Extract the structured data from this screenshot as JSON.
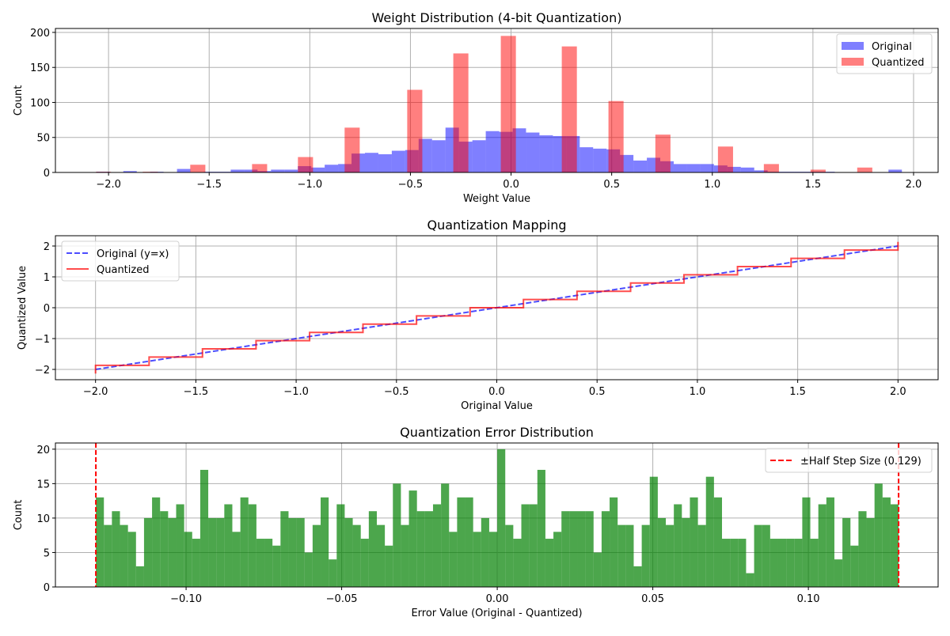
{
  "chart_data": [
    {
      "type": "bar",
      "title": "Weight Distribution (4-bit Quantization)",
      "xlabel": "Weight Value",
      "ylabel": "Count",
      "xlim": [
        -2.264,
        2.122
      ],
      "ylim": [
        0,
        205.6
      ],
      "xticks": [
        -2.0,
        -1.5,
        -1.0,
        -0.5,
        0.0,
        0.5,
        1.0,
        1.5,
        2.0
      ],
      "xtick_labels": [
        "−2.0",
        "−1.5",
        "−1.0",
        "−0.5",
        "0.0",
        "0.5",
        "1.0",
        "1.5",
        "2.0"
      ],
      "yticks": [
        0,
        50,
        100,
        150,
        200
      ],
      "ytick_labels": [
        "0",
        "50",
        "100",
        "150",
        "200"
      ],
      "grid": true,
      "legend_position": "top-right",
      "series": [
        {
          "name": "Original",
          "color": "#0000ff",
          "alpha": 0.5,
          "bin_start": -2.06,
          "bin_width": 0.0667,
          "values": [
            1,
            0,
            2,
            0,
            1,
            0,
            5,
            0,
            1,
            1,
            4,
            4,
            2,
            4,
            4,
            9,
            7,
            11,
            12,
            27,
            28,
            26,
            31,
            32,
            48,
            46,
            64,
            44,
            46,
            59,
            58,
            63,
            57,
            53,
            52,
            52,
            36,
            34,
            33,
            25,
            17,
            21,
            16,
            12,
            12,
            12,
            10,
            8,
            7,
            3,
            1,
            1,
            1,
            1,
            1,
            0,
            0,
            0,
            0,
            4
          ]
        },
        {
          "name": "Quantized",
          "color": "#ff0000",
          "alpha": 0.5,
          "bin_width": 0.075,
          "bin_lefts": [
            -2.063,
            -1.83,
            -1.594,
            -1.287,
            -1.059,
            -0.827,
            -0.516,
            -0.287,
            -0.051,
            0.252,
            0.484,
            0.717,
            1.028,
            1.256,
            1.488,
            1.72
          ],
          "values": [
            1,
            1,
            11,
            12,
            22,
            64,
            118,
            170,
            195,
            180,
            102,
            54,
            37,
            12,
            4,
            7
          ]
        }
      ]
    },
    {
      "type": "line",
      "title": "Quantization Mapping",
      "xlabel": "Original Value",
      "ylabel": "Quantized Value",
      "xlim": [
        -2.2,
        2.2
      ],
      "ylim": [
        -2.333,
        2.333
      ],
      "xticks": [
        -2.0,
        -1.5,
        -1.0,
        -0.5,
        0.0,
        0.5,
        1.0,
        1.5,
        2.0
      ],
      "xtick_labels": [
        "−2.0",
        "−1.5",
        "−1.0",
        "−0.5",
        "0.0",
        "0.5",
        "1.0",
        "1.5",
        "2.0"
      ],
      "yticks": [
        -2,
        -1,
        0,
        1,
        2
      ],
      "ytick_labels": [
        "−2",
        "−1",
        "0",
        "1",
        "2"
      ],
      "grid": true,
      "legend_position": "top-left",
      "series": [
        {
          "name": "Original (y=x)",
          "color": "#0000ff",
          "alpha": 0.7,
          "style": "dashed",
          "x": [
            -2,
            2
          ],
          "y": [
            -2,
            2
          ]
        },
        {
          "name": "Quantized",
          "color": "#ff0000",
          "alpha": 0.7,
          "style": "solid",
          "x": [
            -2,
            -2,
            -1.733,
            -1.733,
            -1.467,
            -1.467,
            -1.2,
            -1.2,
            -0.933,
            -0.933,
            -0.667,
            -0.667,
            -0.4,
            -0.4,
            -0.133,
            -0.133,
            0.133,
            0.133,
            0.4,
            0.4,
            0.667,
            0.667,
            0.933,
            0.933,
            1.2,
            1.2,
            1.467,
            1.467,
            1.733,
            1.733,
            2,
            2
          ],
          "y": [
            -2.133,
            -1.867,
            -1.867,
            -1.6,
            -1.6,
            -1.333,
            -1.333,
            -1.067,
            -1.067,
            -0.8,
            -0.8,
            -0.533,
            -0.533,
            -0.267,
            -0.267,
            0,
            0,
            0.267,
            0.267,
            0.533,
            0.533,
            0.8,
            0.8,
            1.067,
            1.067,
            1.333,
            1.333,
            1.6,
            1.6,
            1.867,
            1.867,
            2.133
          ]
        }
      ]
    },
    {
      "type": "bar",
      "title": "Quantization Error Distribution",
      "xlabel": "Error Value (Original - Quantized)",
      "ylabel": "Count",
      "xlim": [
        -0.142,
        0.1417
      ],
      "ylim": [
        0,
        20.9
      ],
      "xticks": [
        -0.1,
        -0.05,
        0.0,
        0.05,
        0.1
      ],
      "xtick_labels": [
        "−0.10",
        "−0.05",
        "0.00",
        "0.05",
        "0.10"
      ],
      "yticks": [
        0,
        5,
        10,
        15,
        20
      ],
      "ytick_labels": [
        "0",
        "5",
        "10",
        "15",
        "20"
      ],
      "grid": true,
      "legend_position": "top-right",
      "series": [
        {
          "color": "#008000",
          "alpha": 0.7,
          "bin_start": -0.129,
          "bin_width": 0.00258,
          "values": [
            13,
            9,
            11,
            9,
            8,
            3,
            10,
            13,
            11,
            10,
            12,
            8,
            7,
            17,
            10,
            10,
            12,
            8,
            13,
            12,
            7,
            7,
            6,
            11,
            10,
            10,
            5,
            9,
            13,
            4,
            12,
            10,
            9,
            7,
            11,
            9,
            6,
            15,
            9,
            14,
            11,
            11,
            12,
            15,
            8,
            13,
            13,
            8,
            10,
            8,
            20,
            9,
            7,
            12,
            12,
            17,
            7,
            8,
            11,
            11,
            11,
            11,
            5,
            11,
            13,
            9,
            9,
            3,
            9,
            16,
            10,
            9,
            12,
            10,
            13,
            9,
            16,
            13,
            7,
            7,
            7,
            2,
            9,
            9,
            7,
            7,
            7,
            7,
            13,
            7,
            12,
            13,
            4,
            10,
            6,
            11,
            10,
            15,
            13,
            12
          ]
        }
      ],
      "reference_lines": [
        {
          "name": "±Half Step Size (0.129)",
          "color": "#ff0000",
          "style": "dashed",
          "x": [
            -0.129,
            0.129
          ]
        }
      ]
    }
  ]
}
